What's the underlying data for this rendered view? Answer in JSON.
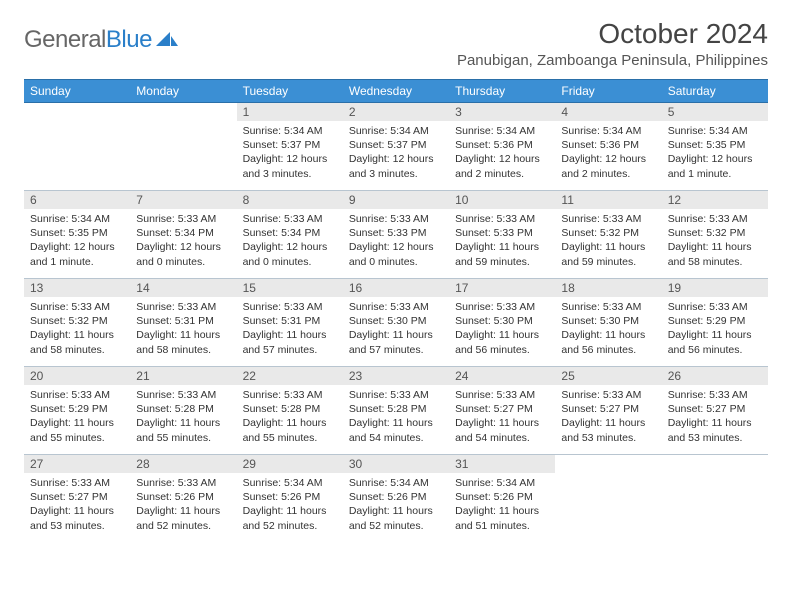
{
  "brand": {
    "name_gray": "General",
    "name_blue": "Blue"
  },
  "title": "October 2024",
  "location": "Panubigan, Zamboanga Peninsula, Philippines",
  "colors": {
    "header_bg": "#3b8fd4",
    "header_text": "#ffffff",
    "daynum_bg": "#e9e9e9",
    "border": "#b8c5d0",
    "logo_blue": "#2a7fc9",
    "text": "#333333"
  },
  "day_headers": [
    "Sunday",
    "Monday",
    "Tuesday",
    "Wednesday",
    "Thursday",
    "Friday",
    "Saturday"
  ],
  "weeks": [
    [
      {
        "empty": true
      },
      {
        "empty": true
      },
      {
        "num": "1",
        "sunrise": "5:34 AM",
        "sunset": "5:37 PM",
        "daylight": "12 hours and 3 minutes."
      },
      {
        "num": "2",
        "sunrise": "5:34 AM",
        "sunset": "5:37 PM",
        "daylight": "12 hours and 3 minutes."
      },
      {
        "num": "3",
        "sunrise": "5:34 AM",
        "sunset": "5:36 PM",
        "daylight": "12 hours and 2 minutes."
      },
      {
        "num": "4",
        "sunrise": "5:34 AM",
        "sunset": "5:36 PM",
        "daylight": "12 hours and 2 minutes."
      },
      {
        "num": "5",
        "sunrise": "5:34 AM",
        "sunset": "5:35 PM",
        "daylight": "12 hours and 1 minute."
      }
    ],
    [
      {
        "num": "6",
        "sunrise": "5:34 AM",
        "sunset": "5:35 PM",
        "daylight": "12 hours and 1 minute."
      },
      {
        "num": "7",
        "sunrise": "5:33 AM",
        "sunset": "5:34 PM",
        "daylight": "12 hours and 0 minutes."
      },
      {
        "num": "8",
        "sunrise": "5:33 AM",
        "sunset": "5:34 PM",
        "daylight": "12 hours and 0 minutes."
      },
      {
        "num": "9",
        "sunrise": "5:33 AM",
        "sunset": "5:33 PM",
        "daylight": "12 hours and 0 minutes."
      },
      {
        "num": "10",
        "sunrise": "5:33 AM",
        "sunset": "5:33 PM",
        "daylight": "11 hours and 59 minutes."
      },
      {
        "num": "11",
        "sunrise": "5:33 AM",
        "sunset": "5:32 PM",
        "daylight": "11 hours and 59 minutes."
      },
      {
        "num": "12",
        "sunrise": "5:33 AM",
        "sunset": "5:32 PM",
        "daylight": "11 hours and 58 minutes."
      }
    ],
    [
      {
        "num": "13",
        "sunrise": "5:33 AM",
        "sunset": "5:32 PM",
        "daylight": "11 hours and 58 minutes."
      },
      {
        "num": "14",
        "sunrise": "5:33 AM",
        "sunset": "5:31 PM",
        "daylight": "11 hours and 58 minutes."
      },
      {
        "num": "15",
        "sunrise": "5:33 AM",
        "sunset": "5:31 PM",
        "daylight": "11 hours and 57 minutes."
      },
      {
        "num": "16",
        "sunrise": "5:33 AM",
        "sunset": "5:30 PM",
        "daylight": "11 hours and 57 minutes."
      },
      {
        "num": "17",
        "sunrise": "5:33 AM",
        "sunset": "5:30 PM",
        "daylight": "11 hours and 56 minutes."
      },
      {
        "num": "18",
        "sunrise": "5:33 AM",
        "sunset": "5:30 PM",
        "daylight": "11 hours and 56 minutes."
      },
      {
        "num": "19",
        "sunrise": "5:33 AM",
        "sunset": "5:29 PM",
        "daylight": "11 hours and 56 minutes."
      }
    ],
    [
      {
        "num": "20",
        "sunrise": "5:33 AM",
        "sunset": "5:29 PM",
        "daylight": "11 hours and 55 minutes."
      },
      {
        "num": "21",
        "sunrise": "5:33 AM",
        "sunset": "5:28 PM",
        "daylight": "11 hours and 55 minutes."
      },
      {
        "num": "22",
        "sunrise": "5:33 AM",
        "sunset": "5:28 PM",
        "daylight": "11 hours and 55 minutes."
      },
      {
        "num": "23",
        "sunrise": "5:33 AM",
        "sunset": "5:28 PM",
        "daylight": "11 hours and 54 minutes."
      },
      {
        "num": "24",
        "sunrise": "5:33 AM",
        "sunset": "5:27 PM",
        "daylight": "11 hours and 54 minutes."
      },
      {
        "num": "25",
        "sunrise": "5:33 AM",
        "sunset": "5:27 PM",
        "daylight": "11 hours and 53 minutes."
      },
      {
        "num": "26",
        "sunrise": "5:33 AM",
        "sunset": "5:27 PM",
        "daylight": "11 hours and 53 minutes."
      }
    ],
    [
      {
        "num": "27",
        "sunrise": "5:33 AM",
        "sunset": "5:27 PM",
        "daylight": "11 hours and 53 minutes."
      },
      {
        "num": "28",
        "sunrise": "5:33 AM",
        "sunset": "5:26 PM",
        "daylight": "11 hours and 52 minutes."
      },
      {
        "num": "29",
        "sunrise": "5:34 AM",
        "sunset": "5:26 PM",
        "daylight": "11 hours and 52 minutes."
      },
      {
        "num": "30",
        "sunrise": "5:34 AM",
        "sunset": "5:26 PM",
        "daylight": "11 hours and 52 minutes."
      },
      {
        "num": "31",
        "sunrise": "5:34 AM",
        "sunset": "5:26 PM",
        "daylight": "11 hours and 51 minutes."
      },
      {
        "empty": true
      },
      {
        "empty": true
      }
    ]
  ]
}
